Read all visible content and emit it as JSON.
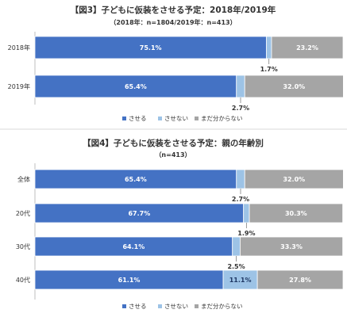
{
  "colors": {
    "saseru": "#4472c4",
    "sasenai": "#9dc3e6",
    "undecided": "#a5a5a5",
    "divider": "#d9d9d9",
    "axis": "#bfbfbf"
  },
  "chart_data": [
    {
      "type": "bar",
      "orientation": "horizontal",
      "stacked": "percent",
      "title": "【図3】子どもに仮装をさせる予定：2018年/2019年",
      "subtitle": "（2018年：n=1804/2019年：n=413）",
      "categories": [
        "2018年",
        "2019年"
      ],
      "series": [
        {
          "name": "させる",
          "values": [
            75.1,
            65.4
          ]
        },
        {
          "name": "させない",
          "values": [
            1.7,
            2.7
          ]
        },
        {
          "name": "まだ分からない",
          "values": [
            23.2,
            32.0
          ]
        }
      ],
      "data_labels": {
        "させる": [
          "75.1%",
          "65.4%"
        ],
        "させない": [
          "1.7%",
          "2.7%"
        ],
        "まだ分からない": [
          "23.2%",
          "32.0%"
        ]
      },
      "legend": "bottom"
    },
    {
      "type": "bar",
      "orientation": "horizontal",
      "stacked": "percent",
      "title": "【図4】子どもに仮装をさせる予定：親の年齢別",
      "subtitle": "（n=413）",
      "categories": [
        "全体",
        "20代",
        "30代",
        "40代"
      ],
      "series": [
        {
          "name": "させる",
          "values": [
            65.4,
            67.7,
            64.1,
            61.1
          ]
        },
        {
          "name": "させない",
          "values": [
            2.7,
            1.9,
            2.5,
            11.1
          ]
        },
        {
          "name": "まだ分からない",
          "values": [
            32.0,
            30.3,
            33.3,
            27.8
          ]
        }
      ],
      "data_labels": {
        "させる": [
          "65.4%",
          "67.7%",
          "64.1%",
          "61.1%"
        ],
        "させない": [
          "2.7%",
          "1.9%",
          "2.5%",
          "11.1%"
        ],
        "まだ分からない": [
          "32.0%",
          "30.3%",
          "33.3%",
          "27.8%"
        ]
      },
      "legend": "bottom"
    }
  ]
}
